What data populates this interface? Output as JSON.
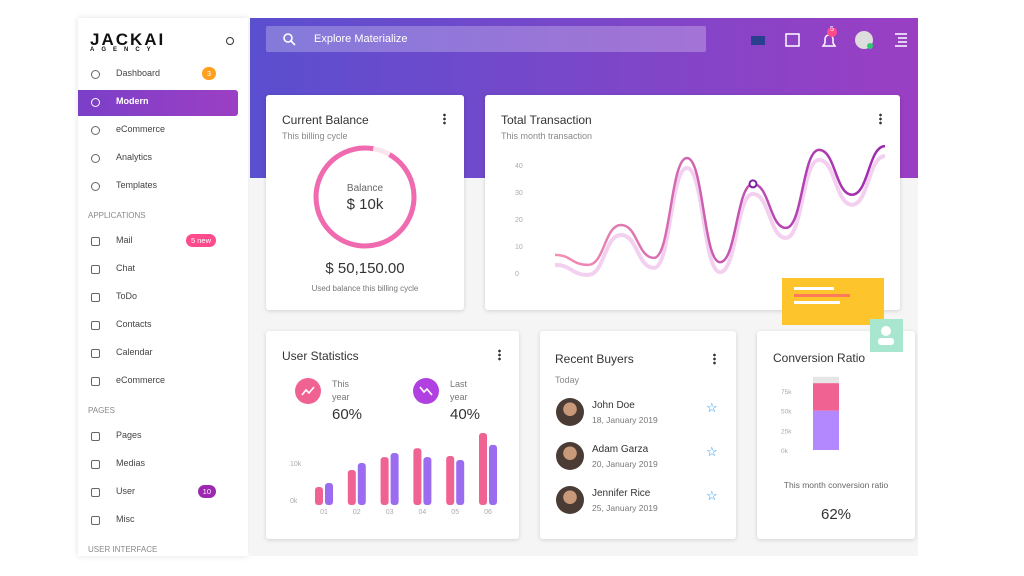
{
  "brand": {
    "name": "JACKAI",
    "tagline": "AGENCY"
  },
  "sidebar": {
    "rows": [
      {
        "label": "Dashboard",
        "badge": "3",
        "badge_color": "#ff9f1c"
      },
      {
        "label": "Modern",
        "active": true
      },
      {
        "label": "eCommerce"
      },
      {
        "label": "Analytics"
      },
      {
        "label": "Templates"
      },
      {
        "section": "APPLICATIONS"
      },
      {
        "label": "Mail",
        "badge": "5 new",
        "badge_color": "#ff4b8b"
      },
      {
        "label": "Chat"
      },
      {
        "label": "ToDo"
      },
      {
        "label": "Contacts"
      },
      {
        "label": "Calendar"
      },
      {
        "label": "eCommerce"
      },
      {
        "section": "PAGES"
      },
      {
        "label": "Pages"
      },
      {
        "label": "Medias"
      },
      {
        "label": "User",
        "badge": "10",
        "badge_color": "#9c27b0"
      },
      {
        "label": "Misc"
      },
      {
        "section": "USER INTERFACE"
      }
    ]
  },
  "header": {
    "search": "Explore Materialize",
    "notifications": "5"
  },
  "balance": {
    "title": "Current Balance",
    "subtitle": "This billing cycle",
    "ring_label": "Balance",
    "ring_value": "$ 10k",
    "amount": "$ 50,150.00",
    "caption": "Used balance this billing cycle"
  },
  "transaction": {
    "title": "Total Transaction",
    "subtitle": "This month transaction",
    "chart": {
      "type": "line",
      "values": [
        6.7,
        3,
        17.8,
        5.6,
        42.6,
        4,
        33,
        16.7,
        45.6,
        29,
        47
      ],
      "marker": 6,
      "color": "#e040fb",
      "ylim": [
        0,
        50
      ],
      "yticks": [
        0,
        10,
        20,
        30,
        40
      ]
    }
  },
  "stats": {
    "title": "User Statistics",
    "this_year": {
      "label": "This year",
      "value": "60%"
    },
    "last_year": {
      "label": "Last year",
      "value": "40%"
    },
    "chart": {
      "type": "bar",
      "categories": [
        "01",
        "02",
        "03",
        "04",
        "05",
        "06"
      ],
      "series": [
        {
          "color": "#f06292",
          "values": [
            3.5,
            8.1,
            11.6,
            14,
            11.9,
            18.1
          ]
        },
        {
          "color": "#9c6cf0",
          "values": [
            4.6,
            10,
            12.7,
            11.6,
            10.8,
            14.9
          ]
        }
      ],
      "ylim": [
        0,
        20
      ],
      "yticks": [
        {
          "value": 0,
          "label": "0k"
        },
        {
          "value": 10,
          "label": "10k"
        }
      ]
    }
  },
  "buyers": {
    "title": "Recent Buyers",
    "subtitle": "Today",
    "list": [
      {
        "name": "John Doe",
        "date": "18, January 2019"
      },
      {
        "name": "Adam Garza",
        "date": "20, January 2019"
      },
      {
        "name": "Jennifer Rice",
        "date": "25, January 2019"
      }
    ]
  },
  "conversion": {
    "title": "Conversion Ratio",
    "chart": {
      "type": "stacked-bar",
      "series": [
        {
          "color": "#b388ff",
          "values": [
            50
          ]
        },
        {
          "color": "#f06292",
          "values": [
            35
          ]
        },
        {
          "color": "#e6e6e6",
          "values": [
            8
          ]
        }
      ],
      "ylim": [
        0,
        100
      ],
      "yticks": [
        {
          "value": 0,
          "label": "0k"
        },
        {
          "value": 25,
          "label": "25k"
        },
        {
          "value": 50,
          "label": "50k"
        },
        {
          "value": 75,
          "label": "75k"
        }
      ]
    },
    "caption": "This month conversion ratio",
    "value": "62%"
  }
}
